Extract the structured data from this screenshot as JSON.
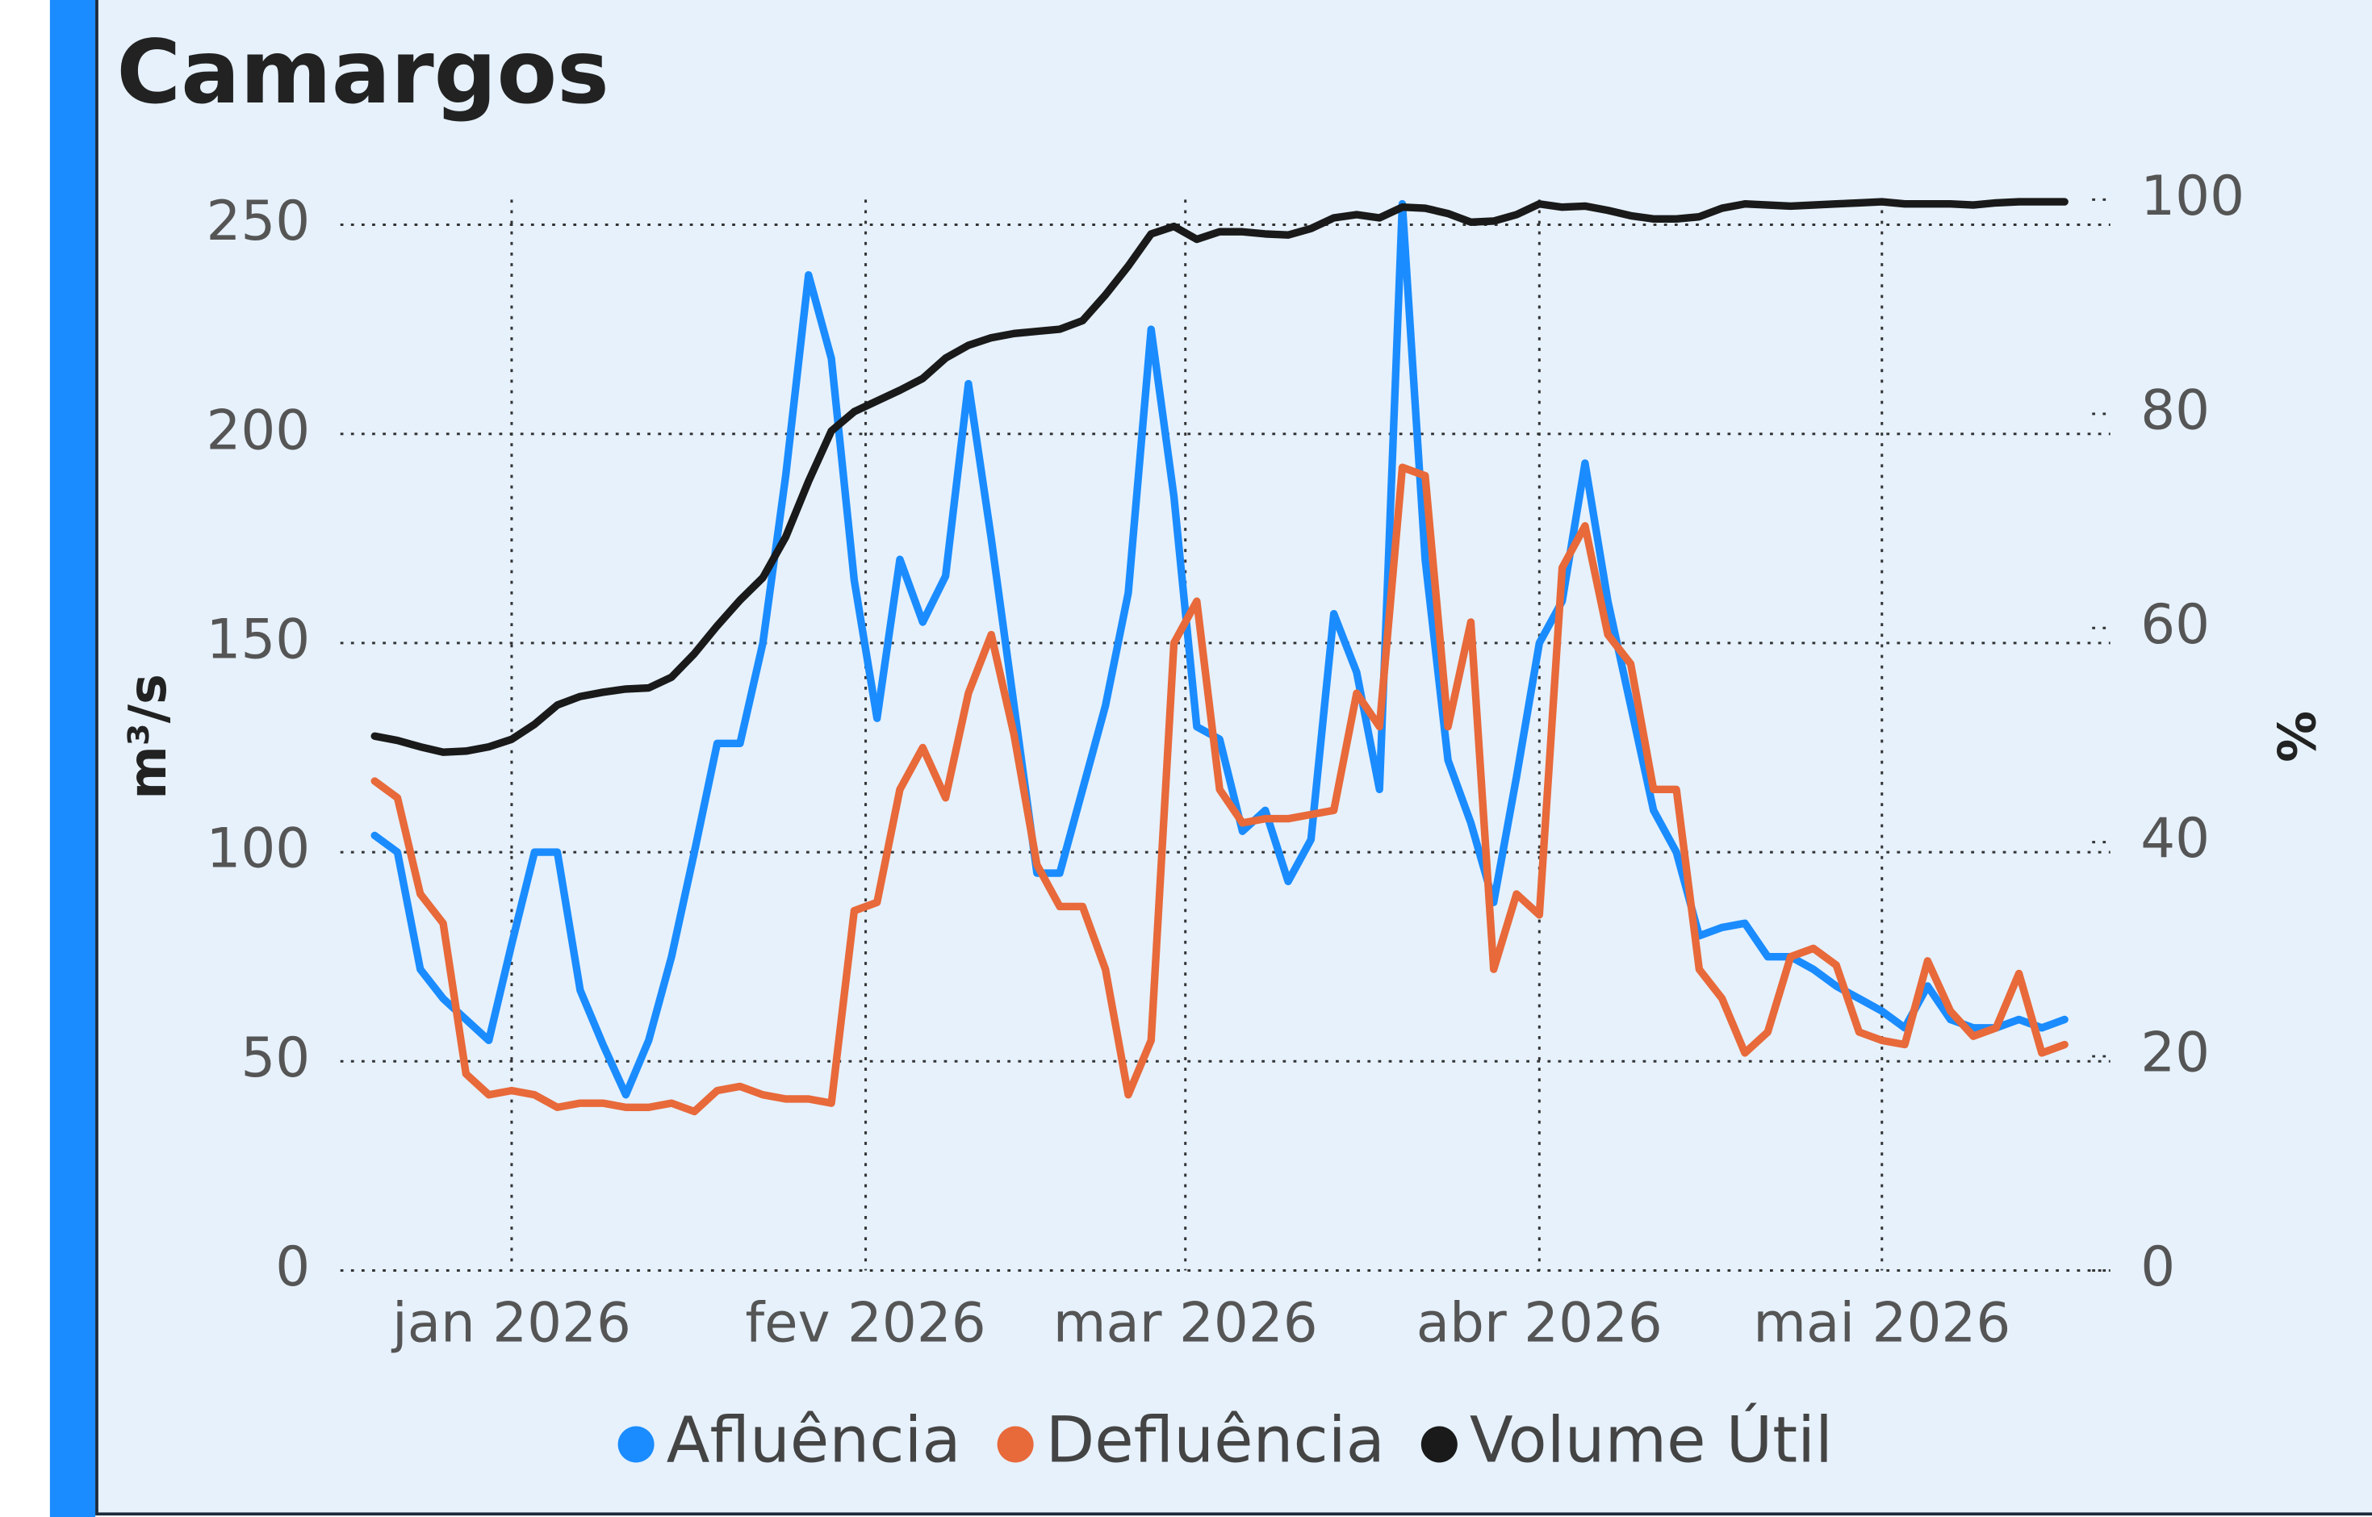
{
  "chart_data": {
    "type": "line",
    "title": "Camargos",
    "y_label": "m³/s",
    "y2_label": "%",
    "x": [
      -12,
      -10,
      -8,
      -6,
      -4,
      -2,
      0,
      2,
      4,
      6,
      8,
      10,
      12,
      14,
      16,
      18,
      20,
      22,
      24,
      26,
      28,
      30,
      32,
      34,
      36,
      38,
      40,
      42,
      44,
      46,
      48,
      50,
      52,
      54,
      56,
      58,
      60,
      62,
      64,
      66,
      68,
      70,
      72,
      74,
      76,
      78,
      80,
      82,
      84,
      86,
      88,
      90,
      92,
      94,
      96,
      98,
      100,
      102,
      104,
      106,
      108,
      110,
      112,
      114,
      116,
      118,
      120,
      122,
      124,
      126,
      128,
      130,
      132,
      134,
      136
    ],
    "xlim": [
      -15,
      140
    ],
    "xticks": [
      {
        "value": 0,
        "label": "jan 2026"
      },
      {
        "value": 31,
        "label": "fev 2026"
      },
      {
        "value": 59,
        "label": "mar 2026"
      },
      {
        "value": 90,
        "label": "abr 2026"
      },
      {
        "value": 120,
        "label": "mai 2026"
      }
    ],
    "ylim": [
      0,
      256
    ],
    "yticks": [
      0,
      50,
      100,
      150,
      200,
      250
    ],
    "y2lim": [
      0,
      100
    ],
    "y2ticks": [
      0,
      20,
      40,
      60,
      80,
      100
    ],
    "grid": true,
    "series": [
      {
        "name": "Afluência",
        "color": "#1a8cff",
        "values": [
          104,
          100,
          72,
          65,
          60,
          55,
          78,
          100,
          100,
          67,
          54,
          42,
          55,
          75,
          100,
          126,
          126,
          150,
          190,
          238,
          218,
          165,
          132,
          170,
          155,
          166,
          212,
          175,
          135,
          95,
          95,
          115,
          135,
          162,
          225,
          185,
          130,
          127,
          105,
          110,
          93,
          103,
          157,
          143,
          115,
          255,
          170,
          122,
          107,
          88,
          118,
          150,
          160,
          193,
          160,
          135,
          110,
          100,
          80,
          82,
          83,
          75,
          75,
          72,
          68,
          65,
          62,
          58,
          68,
          60,
          58,
          58,
          60,
          58,
          60
        ]
      },
      {
        "name": "Defluência",
        "color": "#e8693a",
        "values": [
          117,
          113,
          90,
          83,
          47,
          42,
          43,
          42,
          39,
          40,
          40,
          39,
          39,
          40,
          38,
          43,
          44,
          42,
          41,
          41,
          40,
          86,
          88,
          115,
          125,
          113,
          138,
          152,
          128,
          97,
          87,
          87,
          72,
          42,
          55,
          150,
          160,
          115,
          107,
          108,
          108,
          109,
          110,
          138,
          130,
          192,
          190,
          130,
          155,
          72,
          90,
          85,
          168,
          178,
          152,
          145,
          115,
          115,
          72,
          65,
          52,
          57,
          75,
          77,
          73,
          57,
          55,
          54,
          74,
          62,
          56,
          58,
          71,
          52,
          54
        ]
      },
      {
        "name": "Volume Útil",
        "color": "#1a1a1a",
        "axis": "y2",
        "values": [
          49.9,
          49.5,
          48.9,
          48.4,
          48.5,
          48.9,
          49.6,
          51,
          52.8,
          53.6,
          54,
          54.3,
          54.4,
          55.4,
          57.6,
          60.2,
          62.6,
          64.7,
          68.5,
          73.7,
          78.4,
          80.2,
          81.2,
          82.2,
          83.3,
          85.2,
          86.4,
          87.1,
          87.5,
          87.7,
          87.9,
          88.7,
          91.1,
          93.8,
          96.8,
          97.5,
          96.3,
          97,
          97,
          96.8,
          96.7,
          97.3,
          98.3,
          98.6,
          98.3,
          99.3,
          99.2,
          98.7,
          97.9,
          98,
          98.6,
          99.6,
          99.3,
          99.4,
          99,
          98.5,
          98.2,
          98.2,
          98.4,
          99.2,
          99.6,
          99.5,
          99.4,
          99.5,
          99.6,
          99.7,
          99.8,
          99.6,
          99.6,
          99.6,
          99.5,
          99.7,
          99.8,
          99.8,
          99.8
        ]
      }
    ]
  }
}
